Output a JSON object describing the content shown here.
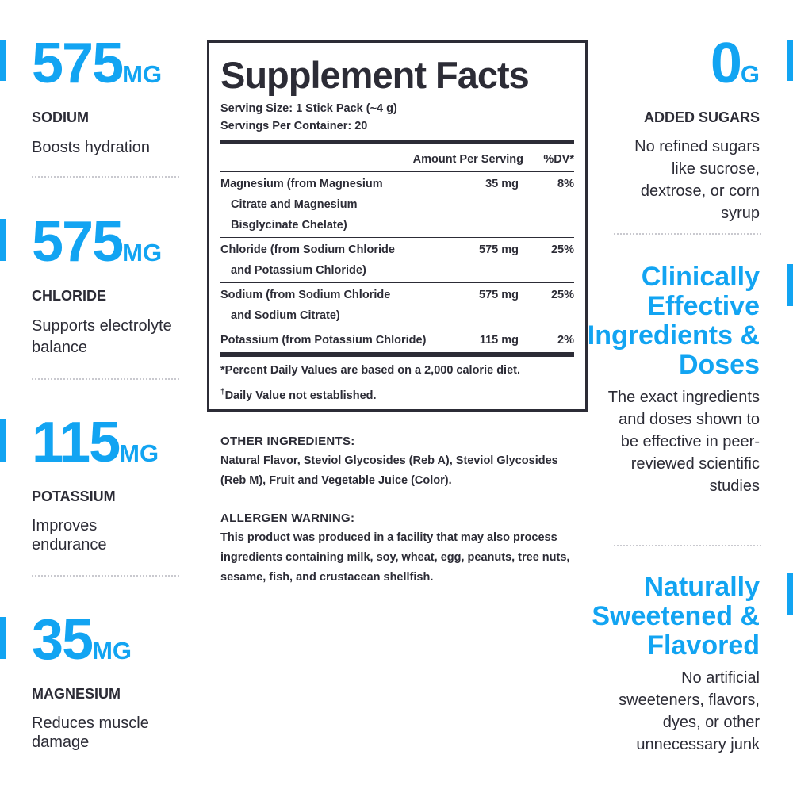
{
  "colors": {
    "accent": "#12a4f2",
    "text": "#2c2c36"
  },
  "left_stats": [
    {
      "value": "575",
      "unit": "MG",
      "label": "SODIUM",
      "desc": "Boosts hydration"
    },
    {
      "value": "575",
      "unit": "MG",
      "label": "CHLORIDE",
      "desc": "Supports electrolyte balance"
    },
    {
      "value": "115",
      "unit": "MG",
      "label": "POTASSIUM",
      "desc": "Improves endurance"
    },
    {
      "value": "35",
      "unit": "MG",
      "label": "MAGNESIUM",
      "desc": "Reduces muscle damage"
    }
  ],
  "right": {
    "sugar": {
      "value": "0",
      "unit": "G",
      "label": "ADDED SUGARS",
      "desc": "No refined sugars like sucrose, dextrose, or corn syrup"
    },
    "features": [
      {
        "title": "Clinically Effective Ingredients & Doses",
        "desc": "The exact ingredients and doses shown to be effective in peer-reviewed scientific studies"
      },
      {
        "title": "Naturally Sweetened & Flavored",
        "desc": "No artificial sweeteners, flavors, dyes, or other unnecessary junk"
      }
    ]
  },
  "facts": {
    "title": "Supplement Facts",
    "serving_size": "Serving Size: 1 Stick Pack (~4 g)",
    "servings": "Servings Per Container: 20",
    "col_amount": "Amount Per Serving",
    "col_dv": "%DV*",
    "rows": [
      {
        "name": "Magnesium (from Magnesium",
        "cont": [
          "Citrate and Magnesium",
          "Bisglycinate Chelate)"
        ],
        "amount": "35 mg",
        "dv": "8%"
      },
      {
        "name": "Chloride (from Sodium Chloride",
        "cont": [
          "and Potassium Chloride)"
        ],
        "amount": "575 mg",
        "dv": "25%"
      },
      {
        "name": "Sodium (from Sodium Chloride",
        "cont": [
          "and Sodium Citrate)"
        ],
        "amount": "575 mg",
        "dv": "25%"
      },
      {
        "name": "Potassium (from Potassium Chloride)",
        "cont": [],
        "amount": "115 mg",
        "dv": "2%"
      }
    ],
    "footnote1": "*Percent Daily Values are based on a 2,000 calorie diet.",
    "footnote2_mark": "†",
    "footnote2": "Daily Value not established."
  },
  "other": {
    "ingredients_title": "OTHER INGREDIENTS:",
    "ingredients": "Natural Flavor, Steviol Glycosides (Reb A), Steviol Glycosides (Reb M), Fruit and Vegetable Juice (Color).",
    "allergen_title": "ALLERGEN WARNING:",
    "allergen": "This product was produced in a facility that may also process ingredients containing milk, soy, wheat, egg, peanuts, tree nuts, sesame, fish, and crustacean shellfish."
  }
}
